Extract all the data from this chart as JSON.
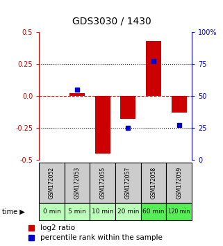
{
  "title": "GDS3030 / 1430",
  "samples": [
    "GSM172052",
    "GSM172053",
    "GSM172055",
    "GSM172057",
    "GSM172058",
    "GSM172059"
  ],
  "time_labels": [
    "0 min",
    "5 min",
    "10 min",
    "20 min",
    "60 min",
    "120 min"
  ],
  "log2_ratio": [
    0.0,
    0.02,
    -0.45,
    -0.18,
    0.43,
    -0.13
  ],
  "percentile_rank": [
    null,
    55,
    null,
    25,
    77,
    27
  ],
  "left_ylim": [
    -0.5,
    0.5
  ],
  "right_ylim": [
    0,
    100
  ],
  "left_yticks": [
    -0.5,
    -0.25,
    0.0,
    0.25,
    0.5
  ],
  "right_yticks": [
    0,
    25,
    50,
    75,
    100
  ],
  "right_yticklabels": [
    "0",
    "25",
    "50",
    "75",
    "100%"
  ],
  "bar_color": "#cc0000",
  "dot_color": "#0000cc",
  "hline_color": "#cc0000",
  "dotted_color": "#000000",
  "sample_bg": "#cccccc",
  "time_colors": [
    "#bbffbb",
    "#bbffbb",
    "#bbffbb",
    "#bbffbb",
    "#55ee55",
    "#55ee55"
  ],
  "bar_width": 0.6,
  "figsize": [
    3.21,
    3.54
  ],
  "dpi": 100
}
